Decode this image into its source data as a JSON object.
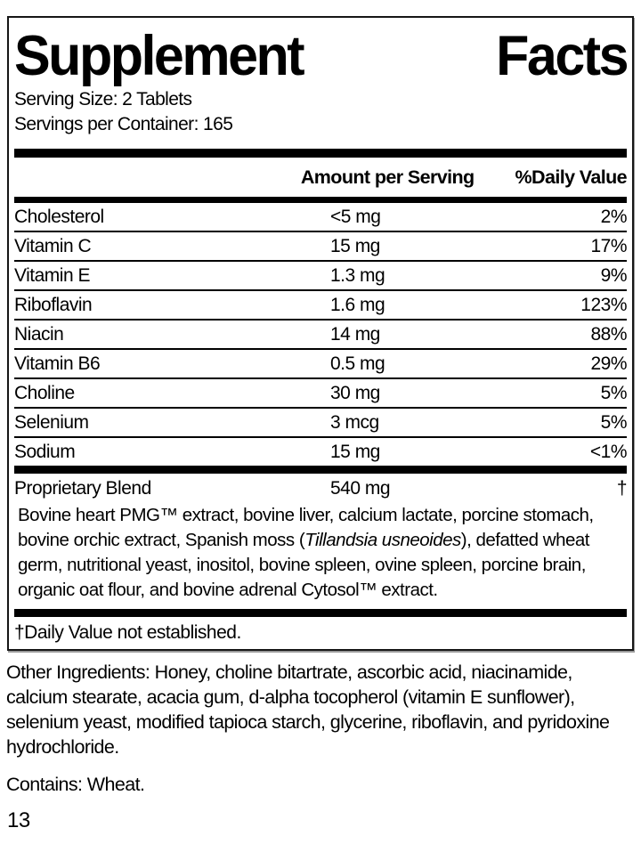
{
  "panel": {
    "title_left": "Supplement",
    "title_right": "Facts",
    "serving_size": "Serving Size: 2 Tablets",
    "servings_per_container": "Servings per Container: 165",
    "columns": {
      "amount": "Amount per Serving",
      "daily_value": "%Daily Value"
    },
    "nutrients": [
      {
        "name": "Cholesterol",
        "amount": "<5 mg",
        "dv": "2%"
      },
      {
        "name": "Vitamin C",
        "amount": "15 mg",
        "dv": "17%"
      },
      {
        "name": "Vitamin E",
        "amount": "1.3 mg",
        "dv": "9%"
      },
      {
        "name": "Riboflavin",
        "amount": "1.6 mg",
        "dv": "123%"
      },
      {
        "name": "Niacin",
        "amount": "14 mg",
        "dv": "88%"
      },
      {
        "name": "Vitamin B6",
        "amount": "0.5 mg",
        "dv": "29%"
      },
      {
        "name": "Choline",
        "amount": "30 mg",
        "dv": "5%"
      },
      {
        "name": "Selenium",
        "amount": "3 mcg",
        "dv": "5%"
      },
      {
        "name": "Sodium",
        "amount": "15 mg",
        "dv": "<1%"
      }
    ],
    "proprietary": {
      "name": "Proprietary Blend",
      "amount": "540 mg",
      "dv": "†"
    },
    "blend": {
      "before_italic": "Bovine heart PMG™ extract, bovine liver, calcium lactate, porcine stomach, bovine orchic extract, Spanish moss (",
      "italic": "Tillandsia usneoides",
      "after_italic": "), defatted wheat germ, nutritional yeast, inositol, bovine spleen, ovine spleen, porcine brain, organic oat flour, and bovine adrenal Cytosol™ extract."
    },
    "footnote": "†Daily Value not established."
  },
  "below_panel": {
    "other_ingredients": "Other Ingredients: Honey, choline bitartrate, ascorbic acid, niacinamide, calcium stearate, acacia gum, d-alpha tocopherol (vitamin E sunflower), selenium yeast, modified tapioca starch, glycerine, riboflavin, and pyridoxine hydrochloride.",
    "contains": "Contains: Wheat.",
    "page_number": "13"
  },
  "colors": {
    "text": "#000000",
    "background": "#ffffff",
    "rule": "#000000"
  }
}
